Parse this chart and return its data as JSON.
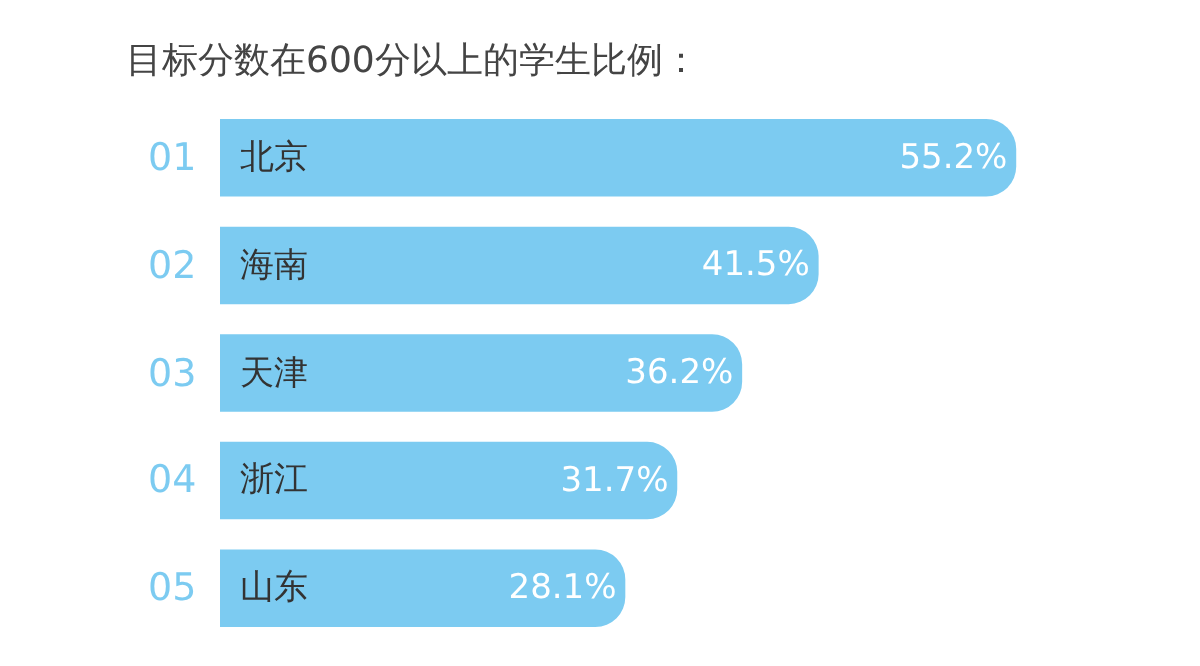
{
  "chart_data": {
    "type": "bar",
    "orientation": "horizontal",
    "title": "目标分数在600分以上的学生比例：",
    "categories": [
      "北京",
      "海南",
      "天津",
      "浙江",
      "山东"
    ],
    "values": [
      55.2,
      41.5,
      36.2,
      31.7,
      28.1
    ],
    "value_labels": [
      "55.2%",
      "41.5%",
      "36.2%",
      "31.7%",
      "28.1%"
    ],
    "color": "#7ccbf1",
    "annotations": [
      "01",
      "02",
      "03",
      "04",
      "05"
    ],
    "tick_labels": false,
    "grid": false,
    "legend": false
  }
}
